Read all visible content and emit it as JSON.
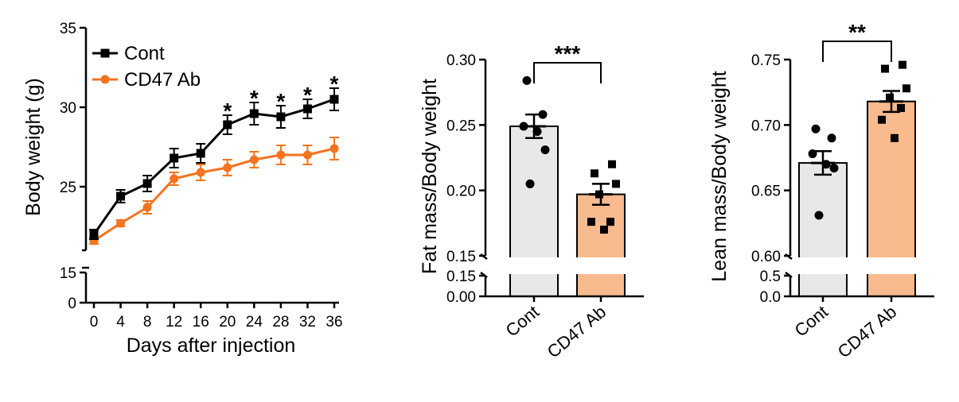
{
  "colors": {
    "cont": "#000000",
    "cd47": "#f47320",
    "bar_cont": "#e8e8e8",
    "bar_cd47": "#f9ba8e"
  },
  "chart_data": [
    {
      "type": "line",
      "xlabel": "Days after injection",
      "ylabel": "Body weight (g)",
      "x": [
        0,
        4,
        8,
        12,
        16,
        20,
        24,
        28,
        32,
        36
      ],
      "x_tick_labels": [
        "0",
        "4",
        "8",
        "12",
        "16",
        "20",
        "24",
        "28",
        "32",
        "36"
      ],
      "y_tick_labels_upper": [
        "35",
        "30",
        "25"
      ],
      "y_tick_labels_lower": [
        "15",
        "0"
      ],
      "ylim_upper": [
        21,
        35
      ],
      "ylim_lower": [
        0,
        15
      ],
      "series": [
        {
          "name": "Cont",
          "marker": "square",
          "values": [
            22.0,
            24.4,
            25.2,
            26.8,
            27.1,
            28.9,
            29.6,
            29.4,
            29.9,
            30.5
          ],
          "errors": [
            0.3,
            0.4,
            0.5,
            0.6,
            0.6,
            0.6,
            0.7,
            0.7,
            0.6,
            0.7
          ]
        },
        {
          "name": "CD47 Ab",
          "marker": "circle",
          "values": [
            21.6,
            22.7,
            23.7,
            25.5,
            25.9,
            26.2,
            26.7,
            27.0,
            27.0,
            27.4
          ],
          "errors": [
            0.2,
            0.2,
            0.4,
            0.4,
            0.5,
            0.5,
            0.5,
            0.6,
            0.6,
            0.7
          ]
        }
      ],
      "significance": {
        "x": [
          20,
          24,
          28,
          32,
          36
        ],
        "label": "*"
      }
    },
    {
      "type": "bar",
      "ylabel": "Fat mass/Body weight",
      "categories": [
        "Cont",
        "CD47 Ab"
      ],
      "values": [
        0.249,
        0.197
      ],
      "errors": [
        0.009,
        0.008
      ],
      "points": [
        [
          0.284,
          0.258,
          0.249,
          0.245,
          0.231,
          0.205
        ],
        [
          0.22,
          0.213,
          0.205,
          0.197,
          0.176,
          0.176,
          0.17
        ]
      ],
      "y_tick_labels_upper": [
        "0.30",
        "0.25",
        "0.20",
        "0.15"
      ],
      "y_tick_labels_lower": [
        "0.15",
        "0.00"
      ],
      "ylim_upper": [
        0.15,
        0.3
      ],
      "ylim_lower": [
        0.0,
        0.15
      ],
      "significance": "***"
    },
    {
      "type": "bar",
      "ylabel": "Lean mass/Body weight",
      "categories": [
        "Cont",
        "CD47 Ab"
      ],
      "values": [
        0.671,
        0.718
      ],
      "errors": [
        0.009,
        0.008
      ],
      "points": [
        [
          0.697,
          0.69,
          0.678,
          0.67,
          0.667,
          0.631
        ],
        [
          0.746,
          0.743,
          0.728,
          0.721,
          0.713,
          0.704,
          0.69
        ]
      ],
      "y_tick_labels_upper": [
        "0.75",
        "0.70",
        "0.65",
        "0.60"
      ],
      "y_tick_labels_lower": [
        "0.5",
        "0.0"
      ],
      "ylim_upper": [
        0.6,
        0.75
      ],
      "ylim_lower": [
        0.0,
        0.5
      ],
      "significance": "**"
    }
  ]
}
